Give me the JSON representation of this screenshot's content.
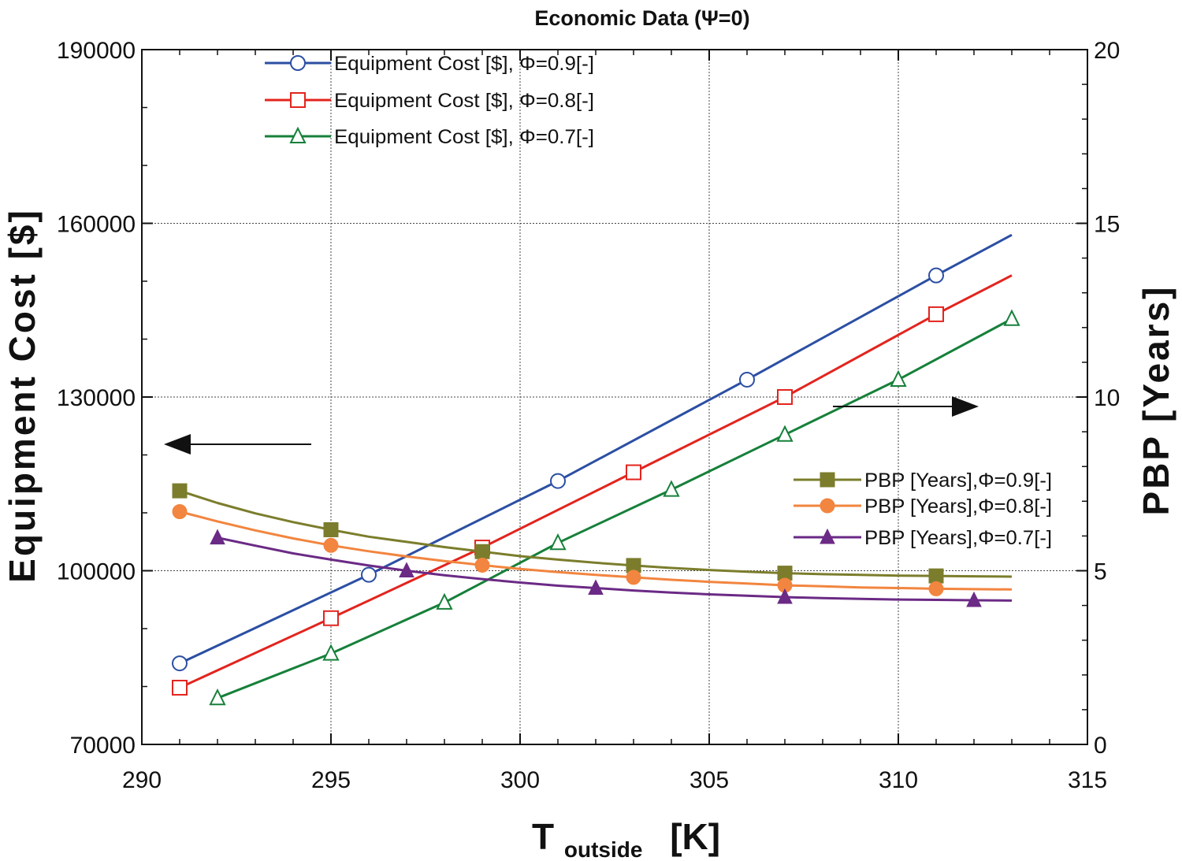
{
  "chart_data": {
    "type": "line",
    "title": "Economic Data (Ψ=0)",
    "xlabel_main": "T",
    "xlabel_sub": "outside",
    "xlabel_unit": "[K]",
    "ylabel_left": "Equipment Cost [$]",
    "ylabel_right": "PBP [Years]",
    "xlim": [
      290,
      315
    ],
    "ylim_left": [
      70000,
      190000
    ],
    "ylim_right": [
      0,
      20
    ],
    "xticks": [
      "290",
      "295",
      "300",
      "305",
      "310",
      "315"
    ],
    "yticks_left": [
      "70000",
      "100000",
      "130000",
      "160000",
      "190000"
    ],
    "yticks_right": [
      "0",
      "5",
      "10",
      "15",
      "20"
    ],
    "grid": true,
    "arrows": [
      {
        "direction": "left",
        "meaning": "left axis"
      },
      {
        "direction": "right",
        "meaning": "right axis"
      }
    ],
    "series": [
      {
        "name": "Equipment Cost [$], Φ=0.9[-]",
        "axis": "left",
        "color": "#2b4fa3",
        "marker": "circle-open",
        "x": [
          291,
          296,
          301,
          306,
          311,
          313
        ],
        "y": [
          84000,
          99300,
          115500,
          133000,
          151000,
          158000
        ],
        "marker_x": [
          291,
          296,
          301,
          306,
          311
        ]
      },
      {
        "name": "Equipment Cost [$], Φ=0.8[-]",
        "axis": "left",
        "color": "#e3241e",
        "marker": "square-open",
        "x": [
          291,
          295,
          299,
          303,
          307,
          311,
          313
        ],
        "y": [
          79800,
          91800,
          104000,
          117000,
          130000,
          144300,
          151000
        ],
        "marker_x": [
          291,
          295,
          299,
          303,
          307,
          311
        ]
      },
      {
        "name": "Equipment Cost [$], Φ=0.7[-]",
        "axis": "left",
        "color": "#16803a",
        "marker": "triangle-open",
        "x": [
          292,
          295,
          298,
          301,
          304,
          307,
          310,
          313
        ],
        "y": [
          78000,
          85700,
          94500,
          104800,
          114000,
          123500,
          133000,
          143500
        ],
        "marker_x": [
          292,
          295,
          298,
          301,
          304,
          307,
          310,
          313
        ]
      },
      {
        "name": "PBP [Years],Φ=0.9[-]",
        "axis": "right",
        "color": "#7b7d2c",
        "marker": "square-filled",
        "x": [
          291,
          292,
          293,
          294,
          295,
          296,
          297,
          298,
          299,
          300,
          301,
          302,
          303,
          304,
          305,
          306,
          307,
          308,
          309,
          310,
          311,
          312,
          313
        ],
        "y": [
          7.3,
          6.95,
          6.65,
          6.4,
          6.18,
          5.98,
          5.83,
          5.68,
          5.55,
          5.42,
          5.32,
          5.23,
          5.15,
          5.08,
          5.02,
          4.97,
          4.93,
          4.9,
          4.88,
          4.86,
          4.85,
          4.84,
          4.83
        ],
        "marker_x": [
          291,
          295,
          299,
          303,
          307,
          311
        ]
      },
      {
        "name": "PBP [Years],Φ=0.8[-]",
        "axis": "right",
        "color": "#f2853f",
        "marker": "circle-filled",
        "x": [
          291,
          292,
          293,
          294,
          295,
          296,
          297,
          298,
          299,
          300,
          301,
          302,
          303,
          304,
          305,
          306,
          307,
          308,
          309,
          310,
          311,
          312,
          313
        ],
        "y": [
          6.7,
          6.42,
          6.16,
          5.93,
          5.73,
          5.56,
          5.41,
          5.28,
          5.16,
          5.05,
          4.96,
          4.88,
          4.81,
          4.74,
          4.68,
          4.63,
          4.58,
          4.55,
          4.52,
          4.5,
          4.48,
          4.47,
          4.46
        ],
        "marker_x": [
          291,
          295,
          299,
          303,
          307,
          311
        ]
      },
      {
        "name": "PBP [Years],Φ=0.7[-]",
        "axis": "right",
        "color": "#6b2a85",
        "marker": "triangle-filled",
        "x": [
          292,
          293,
          294,
          295,
          296,
          297,
          298,
          299,
          300,
          301,
          302,
          303,
          304,
          305,
          306,
          307,
          308,
          309,
          310,
          311,
          312,
          313
        ],
        "y": [
          5.95,
          5.72,
          5.5,
          5.32,
          5.15,
          5.0,
          4.87,
          4.76,
          4.66,
          4.57,
          4.5,
          4.43,
          4.37,
          4.32,
          4.28,
          4.24,
          4.21,
          4.19,
          4.17,
          4.16,
          4.15,
          4.14
        ],
        "marker_x": [
          292,
          297,
          302,
          307,
          312
        ]
      }
    ]
  }
}
